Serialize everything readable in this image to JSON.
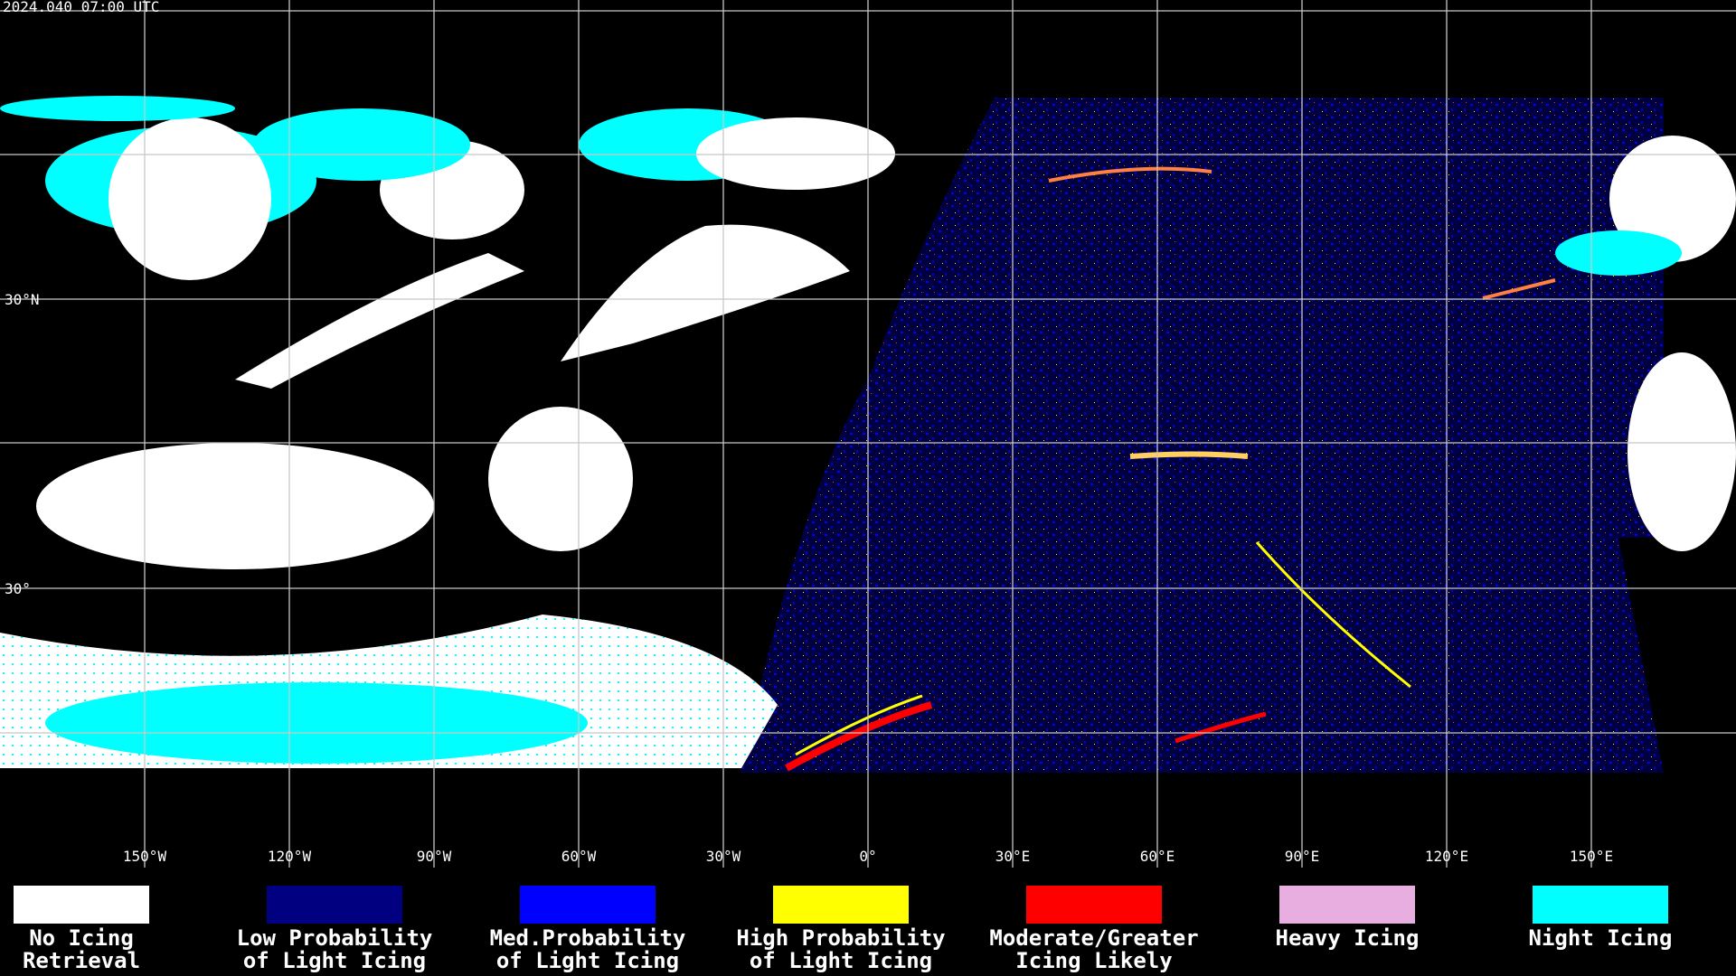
{
  "header": {
    "timestamp": "2024.040 07:00 UTC"
  },
  "map": {
    "latitude_labels": [
      "30°N",
      "30°"
    ],
    "longitude_labels": [
      "150°W",
      "120°W",
      "90°W",
      "60°W",
      "30°W",
      "0°",
      "30°E",
      "60°E",
      "90°E",
      "120°E",
      "150°E"
    ]
  },
  "legend": [
    {
      "color": "#ffffff",
      "label_lines": [
        "No Icing",
        "Retrieval"
      ]
    },
    {
      "color": "#000080",
      "label_lines": [
        "Low Probability",
        "of Light Icing"
      ]
    },
    {
      "color": "#0000ff",
      "label_lines": [
        "Med.Probability",
        "of Light Icing"
      ]
    },
    {
      "color": "#ffff00",
      "label_lines": [
        "High Probability",
        "of Light Icing"
      ]
    },
    {
      "color": "#ff0000",
      "label_lines": [
        "Moderate/Greater",
        "Icing Likely"
      ]
    },
    {
      "color": "#e8aee0",
      "label_lines": [
        "Heavy Icing"
      ]
    },
    {
      "color": "#00ffff",
      "label_lines": [
        "Night Icing"
      ]
    }
  ]
}
